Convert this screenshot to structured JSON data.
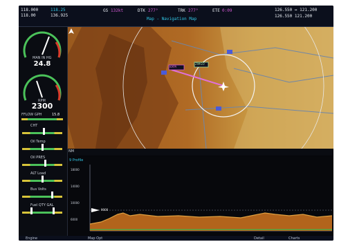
{
  "topbar": {
    "com1_active": "118.000",
    "com1_standby": "118.25",
    "com2_active": "118.00",
    "com2_standby": "136.925",
    "nav_gs_label": "GS",
    "nav_gs_value": "132kt",
    "dtk_label": "DTK",
    "dtk_value": "277°",
    "trk_label": "TRK",
    "trk_value": "277°",
    "ete_label": "ETE",
    "ete_value": "0:09",
    "page_title": "Map - Navigation Map",
    "nav1": "126.550 ↔ 121.200",
    "nav2": "126.550   121.200"
  },
  "left": {
    "manifold_label": "MAN IN HG",
    "manifold_value": "24.8",
    "rpm_label": "RPM",
    "rpm_value": "2300",
    "fuel_flow_label": "FFLOW GPH",
    "fuel_flow_value": "15.8",
    "strips": [
      "CHT",
      "Oil Temp",
      "Oil PRES",
      "ALT Load",
      "Bus Volts",
      "Fuel QTY GAL"
    ]
  },
  "map": {
    "waypoint_from": "KAPA",
    "waypoint_to": "ZIMGO",
    "scale_text": "NM"
  },
  "profile": {
    "header": "9 Profile",
    "y_labels": [
      "18000",
      "14000",
      "10000",
      "6000"
    ],
    "aircraft_label": "9000"
  },
  "bottombar": {
    "left": "Engine",
    "mid": "Map Opt",
    "right1": "Detail",
    "right2": "Charts"
  },
  "colors": {
    "bezel": "#05060a",
    "magenta": "#d65ad6",
    "cyan": "#31c7e6",
    "terrain_dark": "#8a4a1a",
    "terrain_light": "#d1a24a"
  },
  "icons": {
    "airplane": "airplane-icon",
    "airport": "airport-icon",
    "north": "north-up-icon"
  }
}
